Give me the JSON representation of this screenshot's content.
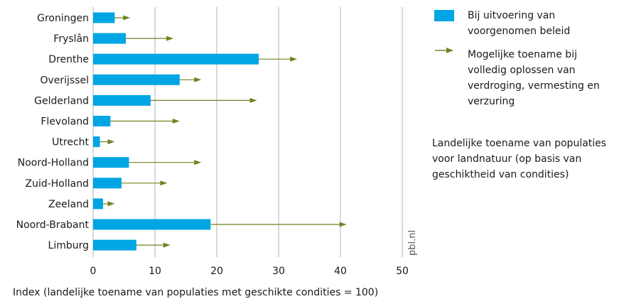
{
  "chart_data": {
    "type": "bar",
    "categories": [
      "Groningen",
      "Fryslân",
      "Drenthe",
      "Overijssel",
      "Gelderland",
      "Flevoland",
      "Utrecht",
      "Noord-Holland",
      "Zuid-Holland",
      "Zeeland",
      "Noord-Brabant",
      "Limburg"
    ],
    "series": [
      {
        "name": "Bij uitvoering van voorgenomen beleid",
        "values": [
          3.5,
          5.3,
          26.8,
          14.0,
          9.3,
          2.8,
          1.1,
          5.8,
          4.6,
          1.6,
          19.0,
          7.0
        ]
      },
      {
        "name": "Mogelijke toename bij volledig oplossen van verdroging, vermesting en verzuring",
        "values": [
          6.0,
          13.0,
          33.0,
          17.5,
          26.5,
          14.0,
          3.5,
          17.5,
          12.0,
          3.5,
          41.0,
          12.5
        ]
      }
    ],
    "xlabel": "Index (landelijke toename van populaties met geschikte condities = 100)",
    "xlim": [
      0,
      50
    ],
    "xticks": [
      "0",
      "10",
      "20",
      "30",
      "40",
      "50"
    ],
    "grid": true,
    "legend_position": "right",
    "colors": {
      "bar": "#00a5e4",
      "arrow": "#6b8520",
      "grid": "#b3b3b3"
    },
    "watermark": "pbl.nl"
  },
  "legend": {
    "bar_label": "Bij uitvoering van voorgenomen beleid",
    "arrow_label": "Mogelijke toename bij volledig oplossen van verdroging, vermesting en verzuring",
    "note": "Landelijke toename van populaties voor landnatuur (op basis van geschiktheid van condities)"
  }
}
